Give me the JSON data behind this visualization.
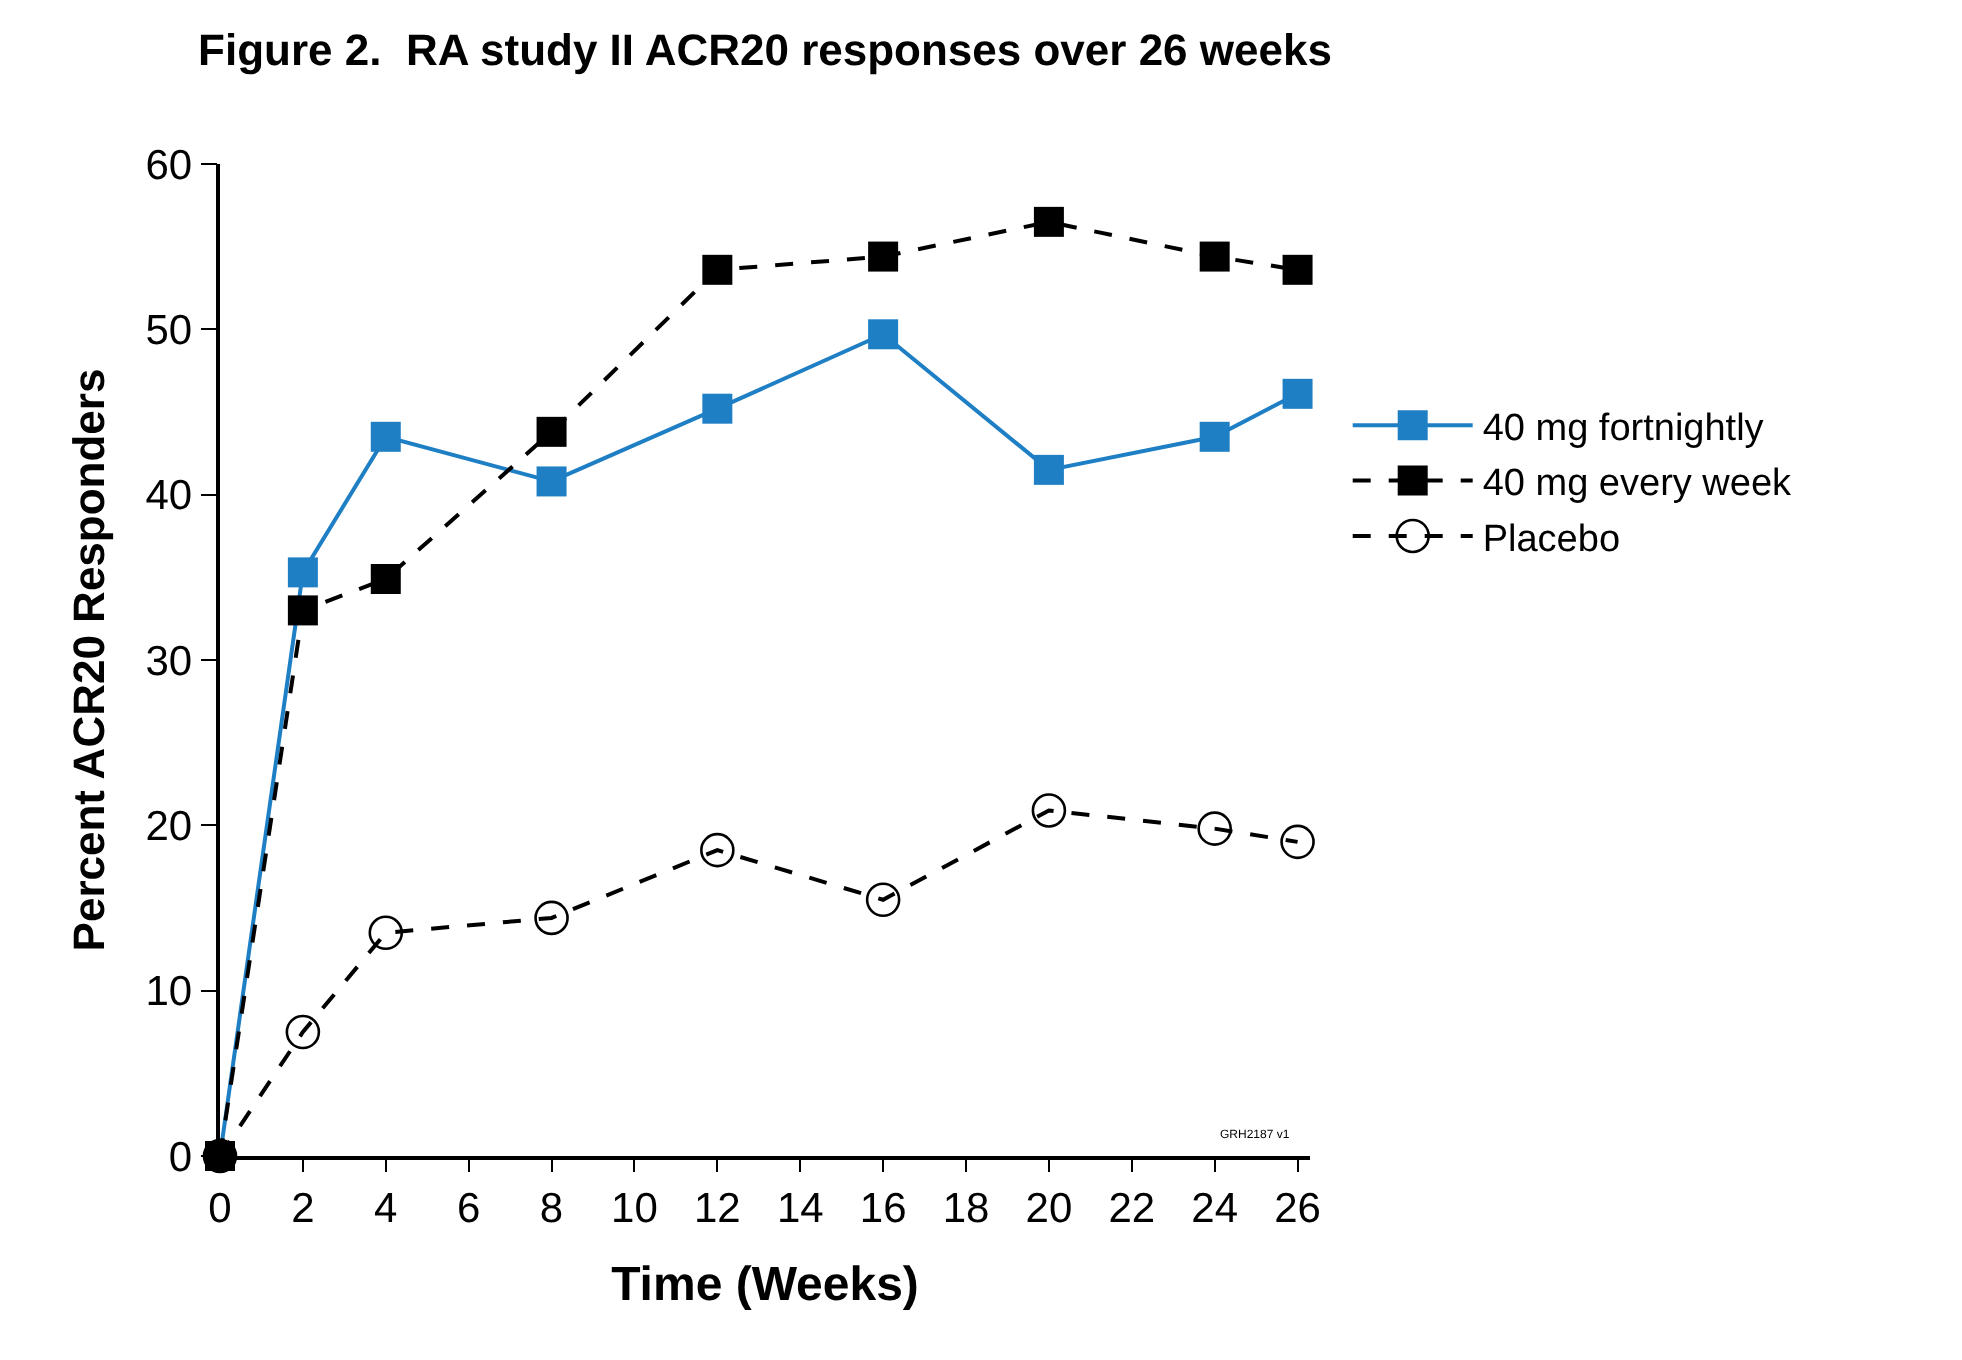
{
  "chart_data": {
    "type": "line",
    "title": "Figure 2.  RA study II ACR20 responses over 26 weeks",
    "xlabel": "Time (Weeks)",
    "ylabel": "Percent ACR20 Responders",
    "x": [
      0,
      2,
      4,
      8,
      12,
      16,
      20,
      24,
      26
    ],
    "series": [
      {
        "name": "40 mg fortnightly",
        "color": "#1f7fc4",
        "values": [
          0,
          35.3,
          43.5,
          40.8,
          45.2,
          49.7,
          41.5,
          43.5,
          46.1
        ],
        "marker": "square",
        "line_style": "solid"
      },
      {
        "name": "40 mg every week",
        "color": "#000000",
        "values": [
          0,
          33.0,
          34.9,
          43.8,
          53.6,
          54.4,
          56.5,
          54.4,
          53.6
        ],
        "marker": "square",
        "line_style": "dashed"
      },
      {
        "name": "Placebo",
        "color": "#000000",
        "values": [
          0,
          7.5,
          13.5,
          14.4,
          18.5,
          15.5,
          20.9,
          19.8,
          19.0
        ],
        "marker": "circle",
        "line_style": "dashed"
      }
    ],
    "xlim": [
      0,
      26.3
    ],
    "xticks": [
      0,
      2,
      4,
      6,
      8,
      10,
      12,
      14,
      16,
      18,
      20,
      22,
      24,
      26
    ],
    "ylim": [
      0,
      60
    ],
    "yticks": [
      0,
      10,
      20,
      30,
      40,
      50,
      60
    ],
    "grid": false,
    "legend": "right",
    "annotations": [
      "GRH2187 v1"
    ]
  }
}
